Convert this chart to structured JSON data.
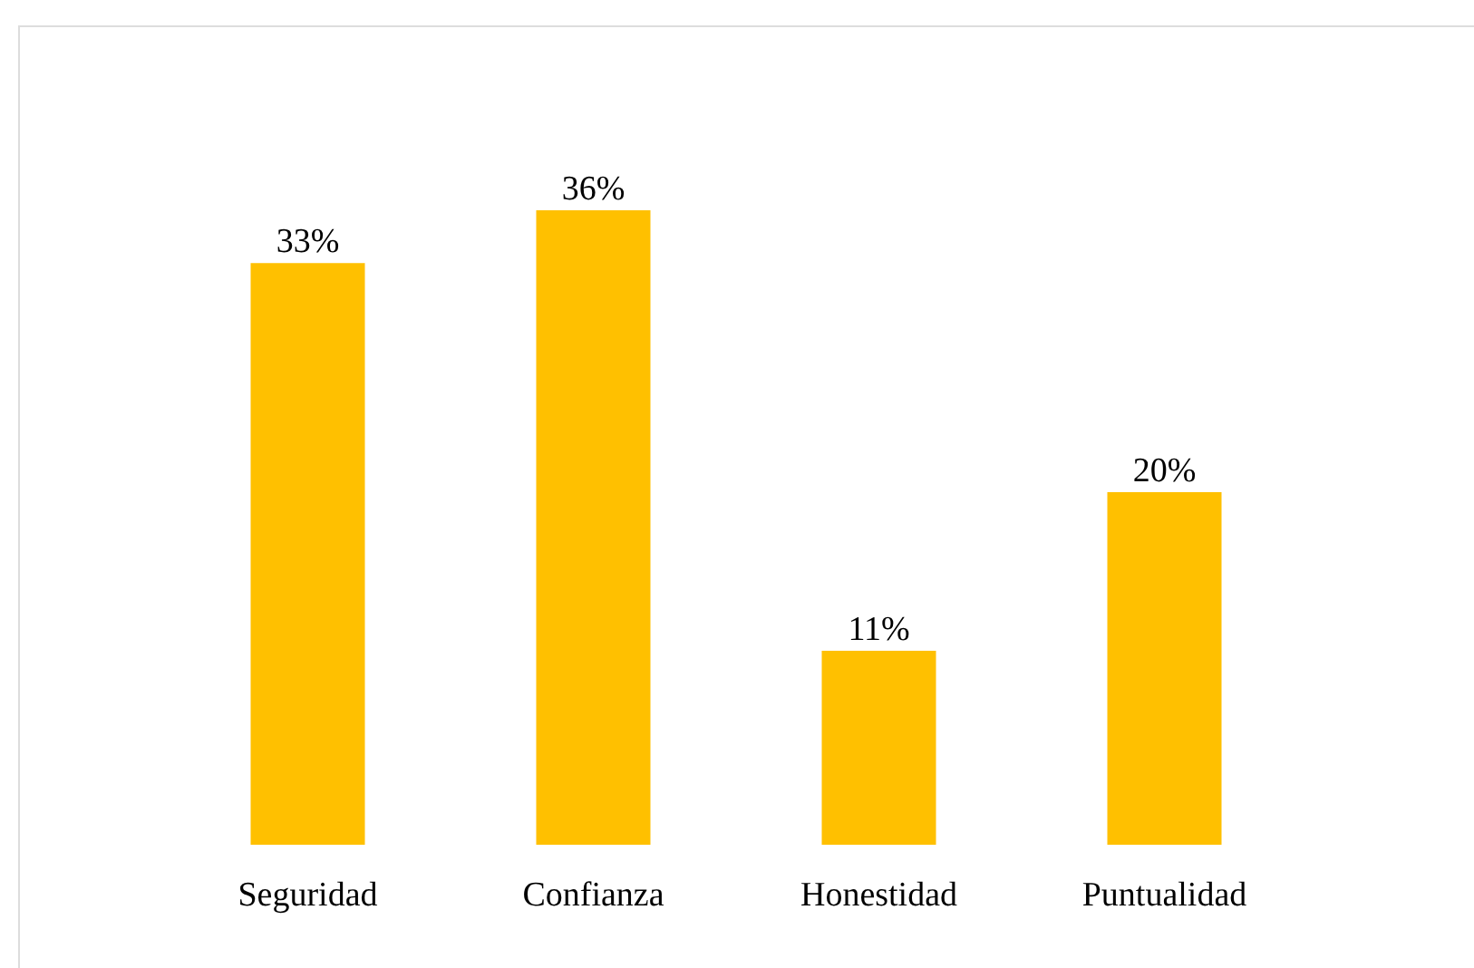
{
  "chart_data": {
    "type": "bar",
    "categories": [
      "Seguridad",
      "Confianza",
      "Honestidad",
      "Puntualidad"
    ],
    "values": [
      33,
      36,
      11,
      20
    ],
    "value_labels": [
      "33%",
      "36%",
      "11%",
      "20%"
    ],
    "color": "#ffc000",
    "grid": false
  }
}
